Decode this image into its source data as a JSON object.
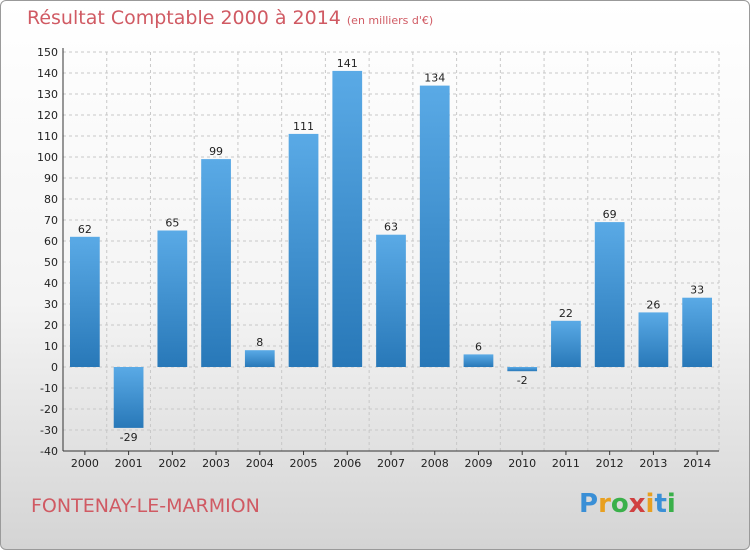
{
  "header": {
    "title": "Résultat Comptable 2000 à 2014",
    "unit": "(en milliers d'€)"
  },
  "footer": {
    "place": "FONTENAY-LE-MARMION",
    "logo": "Proxiti"
  },
  "colors": {
    "title": "#d05a63",
    "bar_top": "#5aaae6",
    "bar_bottom": "#2878b8",
    "grid": "#c8c8c8"
  },
  "chart_data": {
    "type": "bar",
    "title": "Résultat Comptable 2000 à 2014",
    "subtitle": "(en milliers d'€)",
    "xlabel": "",
    "ylabel": "",
    "categories": [
      "2000",
      "2001",
      "2002",
      "2003",
      "2004",
      "2005",
      "2006",
      "2007",
      "2008",
      "2009",
      "2010",
      "2011",
      "2012",
      "2013",
      "2014"
    ],
    "values": [
      62,
      -29,
      65,
      99,
      8,
      111,
      141,
      63,
      134,
      6,
      -2,
      22,
      69,
      26,
      33
    ],
    "data_labels": [
      "62",
      "-29",
      "65",
      "99",
      "8",
      "111",
      "141",
      "63",
      "134",
      "6",
      "-2",
      "22",
      "69",
      "26",
      "33"
    ],
    "yticks": [
      "150",
      "140",
      "130",
      "120",
      "110",
      "100",
      "90",
      "80",
      "70",
      "60",
      "50",
      "40",
      "30",
      "20",
      "10",
      "0",
      "-10",
      "-20",
      "-30",
      "-40"
    ],
    "ylim": [
      -40,
      150
    ],
    "grid": true,
    "legend": "none"
  }
}
